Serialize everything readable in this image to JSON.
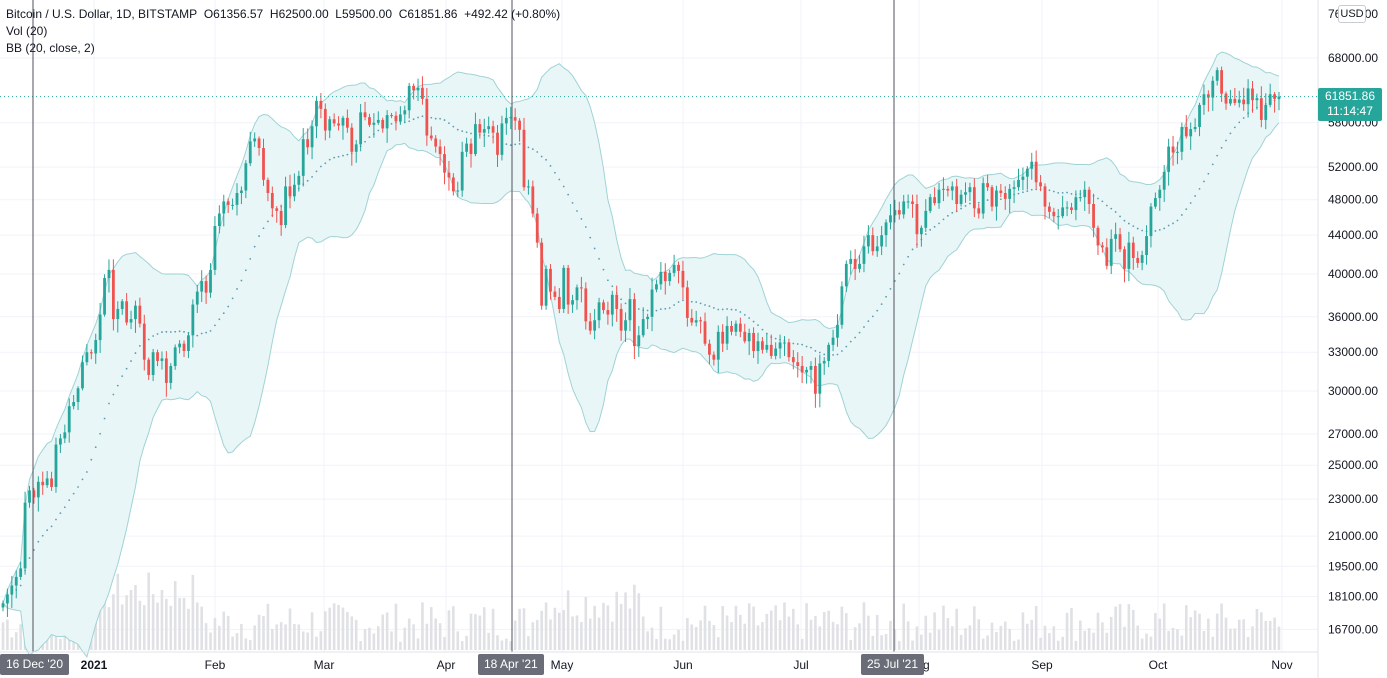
{
  "legend": {
    "symbol": "Bitcoin / U.S. Dollar, 1D, BITSTAMP",
    "open": "O61356.57",
    "high": "H62500.00",
    "low": "L59500.00",
    "close": "C61851.86",
    "change": "+492.42 (+0.80%)",
    "indicator_vol": "Vol (20)",
    "indicator_bb": "BB (20, close, 2)"
  },
  "currency": "USD",
  "last_price": {
    "value": "61851.86",
    "countdown": "11:14:47"
  },
  "markers": [
    "16 Dec '20",
    "18 Apr '21",
    "25 Jul '21"
  ],
  "colors": {
    "up": "#26a69a",
    "down": "#ef5350",
    "bb_band": "#9fd3d6",
    "bb_fill": "#e9f6f7",
    "basis": "#5e9bb0",
    "volume": "#dfe1e5"
  },
  "chart_data": {
    "type": "candlestick",
    "y_scale": "log",
    "y_ticks": [
      16700,
      18100,
      19500,
      21000,
      23000,
      25000,
      27000,
      30000,
      33000,
      36000,
      40000,
      44000,
      48000,
      52000,
      58000,
      68000
    ],
    "y_tick_labels": [
      "16700.00",
      "18100.00",
      "19500.00",
      "21000.00",
      "23000.00",
      "25000.00",
      "27000.00",
      "30000.00",
      "33000.00",
      "36000.00",
      "40000.00",
      "44000.00",
      "48000.00",
      "52000.00",
      "58000.00",
      "68000.00"
    ],
    "top_tick_label": "76000.00",
    "x_labels": [
      "2021",
      "Feb",
      "Mar",
      "Apr",
      "May",
      "Jun",
      "Jul",
      "Aug",
      "Sep",
      "Oct",
      "Nov"
    ],
    "close_series": [
      [
        17800,
        18200,
        18600,
        19000,
        19400,
        22800,
        23500,
        23100,
        24000,
        23800,
        24200,
        23700,
        26300,
        26700,
        27100,
        28900,
        29200,
        30200,
        32200,
        33000,
        32900,
        34000,
        36200,
        39600,
        40400,
        35800,
        36700,
        37400,
        35500,
        35800,
        37000,
        35400,
        32400,
        31200,
        33000,
        32300,
        32500,
        30600,
        31900,
        33400,
        33700,
        33100,
        34400,
        37100,
        38300,
        39300,
        38200,
        40400,
        45000,
        46400,
        47800,
        47400,
        47400,
        48800,
        49100,
        52500,
        55400,
        55800,
        54500,
        50400,
        48800,
        47000,
        46700,
        45100,
        49600,
        48400,
        49800,
        50900,
        55700,
        54600,
        57500,
        61200,
        60000,
        56900,
        58500,
        57900,
        57600,
        58700,
        57300,
        54000,
        55000,
        59500,
        58800,
        57700,
        58000,
        58400,
        57200,
        59100,
        59000,
        58200,
        59200,
        59800,
        63500,
        62800,
        63200,
        61500,
        56200,
        55800,
        54700,
        53700,
        51300,
        50700,
        49000,
        49100,
        54000,
        55100,
        53700,
        57800,
        56600,
        57100,
        57500,
        56600,
        53600,
        57900,
        58700,
        58800,
        58300,
        57000,
        49500,
        49600,
        46400,
        43200,
        37000,
        40500,
        38300,
        37800,
        36700,
        40600,
        37100,
        37500,
        38700,
        38600,
        35600,
        34800,
        35700,
        37300,
        36600,
        36200,
        38000,
        36700,
        34800,
        35700,
        37600,
        33500,
        34400,
        35800,
        36000,
        38500,
        39000,
        40200,
        39300,
        40100,
        40900,
        40300,
        38700,
        35900,
        35500,
        35700,
        35600,
        33700,
        32800,
        32400,
        34700,
        33700,
        35200,
        34700,
        35400,
        34700,
        33900,
        34600,
        33100,
        33900,
        33200,
        33600,
        32700,
        33300,
        33800,
        33800,
        32600,
        32200,
        31900,
        31400,
        31600,
        31900,
        29800,
        32100,
        32300,
        33600,
        34200,
        35300,
        38800,
        41000,
        41500,
        40500,
        41000,
        42800,
        44000,
        42300,
        42800,
        44000,
        45400,
        46200,
        46800,
        46300,
        47800,
        47800,
        47500,
        44100,
        44800,
        46700,
        48300,
        47600,
        49200,
        49300,
        49100,
        49600,
        47500,
        48600,
        48900,
        49500,
        47000,
        46400,
        50000,
        49500,
        47200,
        49100,
        48800,
        48100,
        49300,
        49500,
        50400,
        50800,
        51800,
        52700,
        50100,
        49600,
        47200,
        46600,
        46100,
        46100,
        47100,
        47100,
        46800,
        48300,
        48300,
        49200,
        47500,
        44800,
        42900,
        42700,
        40800,
        43600,
        44100,
        42500,
        40500,
        43200,
        41600,
        41100,
        41900,
        43900,
        47200,
        48200,
        49200,
        51400,
        54700,
        53900,
        54000,
        57400,
        56100,
        57100,
        57400,
        60600,
        62200,
        61700,
        64300,
        66000,
        62300,
        60800,
        61500,
        60900,
        61400,
        60700,
        63100,
        61300,
        61600,
        58400,
        60600,
        62200,
        61500,
        61852
      ]
    ],
    "last_close": 61851.86
  }
}
